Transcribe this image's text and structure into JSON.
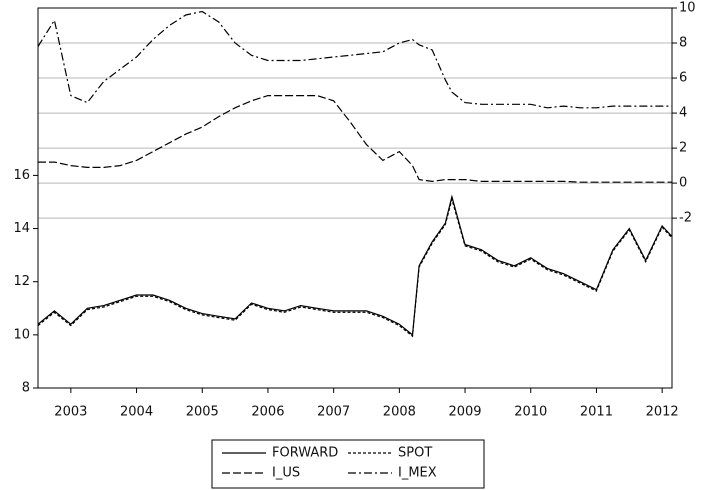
{
  "chart_data": {
    "type": "line",
    "x": [
      2003.0,
      2003.25,
      2003.5,
      2003.75,
      2004.0,
      2004.25,
      2004.5,
      2004.75,
      2005.0,
      2005.25,
      2005.5,
      2005.75,
      2006.0,
      2006.25,
      2006.5,
      2006.75,
      2007.0,
      2007.25,
      2007.5,
      2007.75,
      2008.0,
      2008.25,
      2008.5,
      2008.7,
      2008.8,
      2009.0,
      2009.2,
      2009.3,
      2009.5,
      2009.75,
      2010.0,
      2010.25,
      2010.5,
      2010.75,
      2011.0,
      2011.25,
      2011.5,
      2011.75,
      2012.0,
      2012.25,
      2012.5,
      2012.65
    ],
    "series": [
      {
        "name": "FORWARD",
        "color": "#000000",
        "dash": "solid",
        "axis": "y",
        "values": [
          10.4,
          10.9,
          10.4,
          11.0,
          11.1,
          11.3,
          11.5,
          11.5,
          11.3,
          11.0,
          10.8,
          10.7,
          10.6,
          11.2,
          11.0,
          10.9,
          11.1,
          11.0,
          10.9,
          10.9,
          10.9,
          10.7,
          10.4,
          10.0,
          12.6,
          13.5,
          14.2,
          15.2,
          13.4,
          13.2,
          12.8,
          12.6,
          12.9,
          12.5,
          12.3,
          12.0,
          11.7,
          13.2,
          14.0,
          12.8,
          14.1,
          13.7
        ]
      },
      {
        "name": "SPOT",
        "color": "#000000",
        "dash": "short-dash",
        "axis": "y",
        "values": [
          10.35,
          10.85,
          10.35,
          10.95,
          11.05,
          11.25,
          11.45,
          11.45,
          11.25,
          10.95,
          10.75,
          10.65,
          10.55,
          11.15,
          10.95,
          10.85,
          11.05,
          10.95,
          10.85,
          10.85,
          10.85,
          10.65,
          10.35,
          9.95,
          12.55,
          13.45,
          14.15,
          15.1,
          13.35,
          13.15,
          12.75,
          12.55,
          12.85,
          12.45,
          12.25,
          11.95,
          11.65,
          13.15,
          13.95,
          12.75,
          14.05,
          13.65
        ]
      },
      {
        "name": "I_US",
        "color": "#000000",
        "dash": "long-dash",
        "axis": "y2",
        "values": [
          1.2,
          1.2,
          1.0,
          0.9,
          0.9,
          1.0,
          1.3,
          1.8,
          2.3,
          2.8,
          3.2,
          3.8,
          4.3,
          4.7,
          5.0,
          5.0,
          5.0,
          5.0,
          4.7,
          3.5,
          2.2,
          1.3,
          1.8,
          1.0,
          0.2,
          0.1,
          0.2,
          0.2,
          0.2,
          0.1,
          0.1,
          0.1,
          0.1,
          0.1,
          0.1,
          0.05,
          0.05,
          0.05,
          0.05,
          0.05,
          0.05,
          0.05
        ]
      },
      {
        "name": "I_MEX",
        "color": "#000000",
        "dash": "dash-dot",
        "axis": "y2",
        "values": [
          7.8,
          9.3,
          5.0,
          4.6,
          5.8,
          6.5,
          7.2,
          8.2,
          9.0,
          9.6,
          9.8,
          9.2,
          8.0,
          7.3,
          7.0,
          7.0,
          7.0,
          7.1,
          7.2,
          7.3,
          7.4,
          7.5,
          8.0,
          8.2,
          7.9,
          7.6,
          5.9,
          5.2,
          4.6,
          4.5,
          4.5,
          4.5,
          4.5,
          4.3,
          4.4,
          4.3,
          4.3,
          4.4,
          4.4,
          4.4,
          4.4,
          4.4
        ]
      }
    ],
    "xlim": [
      2003.0,
      2012.65
    ],
    "xticks": [
      {
        "value": 2003.5,
        "label": "2003"
      },
      {
        "value": 2004.5,
        "label": "2004"
      },
      {
        "value": 2005.5,
        "label": "2005"
      },
      {
        "value": 2006.5,
        "label": "2006"
      },
      {
        "value": 2007.5,
        "label": "2007"
      },
      {
        "value": 2008.5,
        "label": "2008"
      },
      {
        "value": 2009.5,
        "label": "2009"
      },
      {
        "value": 2010.5,
        "label": "2010"
      },
      {
        "value": 2011.5,
        "label": "2011"
      },
      {
        "value": 2012.5,
        "label": "2012"
      }
    ],
    "ylim": [
      8,
      22.3
    ],
    "yticks": [
      8,
      10,
      12,
      14,
      16
    ],
    "y2lim": [
      -11.7,
      10
    ],
    "y2ticks": [
      -2,
      0,
      2,
      4,
      6,
      8,
      10
    ],
    "grid": "y2",
    "legend": "bottom"
  }
}
